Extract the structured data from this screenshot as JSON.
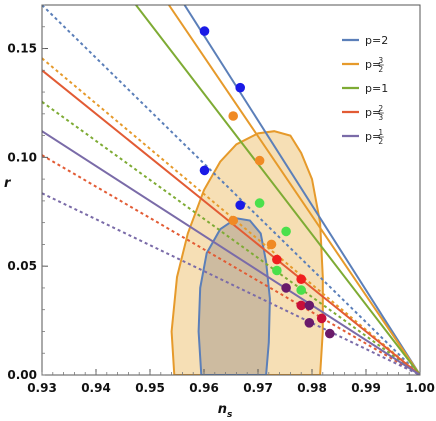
{
  "chart_data": {
    "type": "line",
    "xlabel": "n",
    "xlabel_sub": "s",
    "ylabel": "r",
    "xlim": [
      0.93,
      1.0
    ],
    "ylim": [
      0.0,
      0.17
    ],
    "x_ticks": [
      "0.93",
      "0.94",
      "0.95",
      "0.96",
      "0.97",
      "0.98",
      "0.99",
      "1.00"
    ],
    "y_ticks": [
      "0.00",
      "0.05",
      "0.10",
      "0.15"
    ],
    "legend_position": "top-right",
    "legend": [
      {
        "label": "p=2",
        "color": "#5b7fb9"
      },
      {
        "label": "p=",
        "num": "3",
        "den": "2",
        "color": "#e69a2b"
      },
      {
        "label": "p=1",
        "color": "#7eab34"
      },
      {
        "label": "p=",
        "num": "2",
        "den": "3",
        "color": "#e25b34"
      },
      {
        "label": "p=",
        "num": "1",
        "den": "2",
        "color": "#7a6ba8"
      }
    ],
    "contours": [
      {
        "level": "outer",
        "color": "#e69a2b",
        "fill": "#f5d9a8",
        "points": [
          [
            0.9545,
            0.0
          ],
          [
            0.954,
            0.02
          ],
          [
            0.955,
            0.045
          ],
          [
            0.957,
            0.065
          ],
          [
            0.96,
            0.085
          ],
          [
            0.963,
            0.098
          ],
          [
            0.966,
            0.106
          ],
          [
            0.97,
            0.111
          ],
          [
            0.973,
            0.112
          ],
          [
            0.976,
            0.11
          ],
          [
            0.978,
            0.102
          ],
          [
            0.98,
            0.09
          ],
          [
            0.9815,
            0.07
          ],
          [
            0.982,
            0.045
          ],
          [
            0.982,
            0.02
          ],
          [
            0.9815,
            0.0
          ]
        ]
      },
      {
        "level": "inner",
        "color": "#5b7fb9",
        "fill": "#c6b59c",
        "points": [
          [
            0.9595,
            0.0
          ],
          [
            0.959,
            0.02
          ],
          [
            0.9593,
            0.04
          ],
          [
            0.9605,
            0.056
          ],
          [
            0.963,
            0.067
          ],
          [
            0.966,
            0.072
          ],
          [
            0.9685,
            0.071
          ],
          [
            0.9705,
            0.065
          ],
          [
            0.9715,
            0.052
          ],
          [
            0.9722,
            0.035
          ],
          [
            0.972,
            0.015
          ],
          [
            0.9715,
            0.0
          ]
        ]
      }
    ],
    "series": [
      {
        "name": "p=2",
        "color": "#5b7fb9",
        "upper_start": [
          0.9564,
          0.17
        ],
        "lower_start": [
          0.93,
          0.17
        ],
        "points": [
          [
            0.9601,
            0.158
          ],
          [
            0.9667,
            0.132
          ],
          [
            0.9601,
            0.094
          ],
          [
            0.9667,
            0.078
          ]
        ]
      },
      {
        "name": "p=3/2",
        "color": "#e69a2b",
        "upper_start": [
          0.9535,
          0.17
        ],
        "lower_start": [
          0.93,
          0.1455
        ],
        "points": [
          [
            0.9654,
            0.119
          ],
          [
            0.9703,
            0.0985
          ],
          [
            0.9654,
            0.071
          ],
          [
            0.9725,
            0.06
          ]
        ]
      },
      {
        "name": "p=1",
        "color": "#7eab34",
        "upper_start": [
          0.9474,
          0.17
        ],
        "lower_start": [
          0.93,
          0.1255
        ],
        "points": [
          [
            0.9703,
            0.079
          ],
          [
            0.9752,
            0.066
          ],
          [
            0.9735,
            0.048
          ],
          [
            0.978,
            0.039
          ]
        ]
      },
      {
        "name": "p=2/3",
        "color": "#e25b34",
        "upper_start": [
          0.93,
          0.14
        ],
        "lower_start": [
          0.93,
          0.101
        ],
        "points": [
          [
            0.9735,
            0.053
          ],
          [
            0.978,
            0.044
          ],
          [
            0.978,
            0.032
          ],
          [
            0.9818,
            0.026
          ]
        ]
      },
      {
        "name": "p=1/2",
        "color": "#7a6ba8",
        "upper_start": [
          0.93,
          0.112
        ],
        "lower_start": [
          0.93,
          0.0835
        ],
        "points": [
          [
            0.9752,
            0.04
          ],
          [
            0.9795,
            0.032
          ],
          [
            0.9795,
            0.024
          ],
          [
            0.9833,
            0.019
          ]
        ]
      }
    ],
    "end_point": [
      1.0,
      0.0
    ]
  }
}
